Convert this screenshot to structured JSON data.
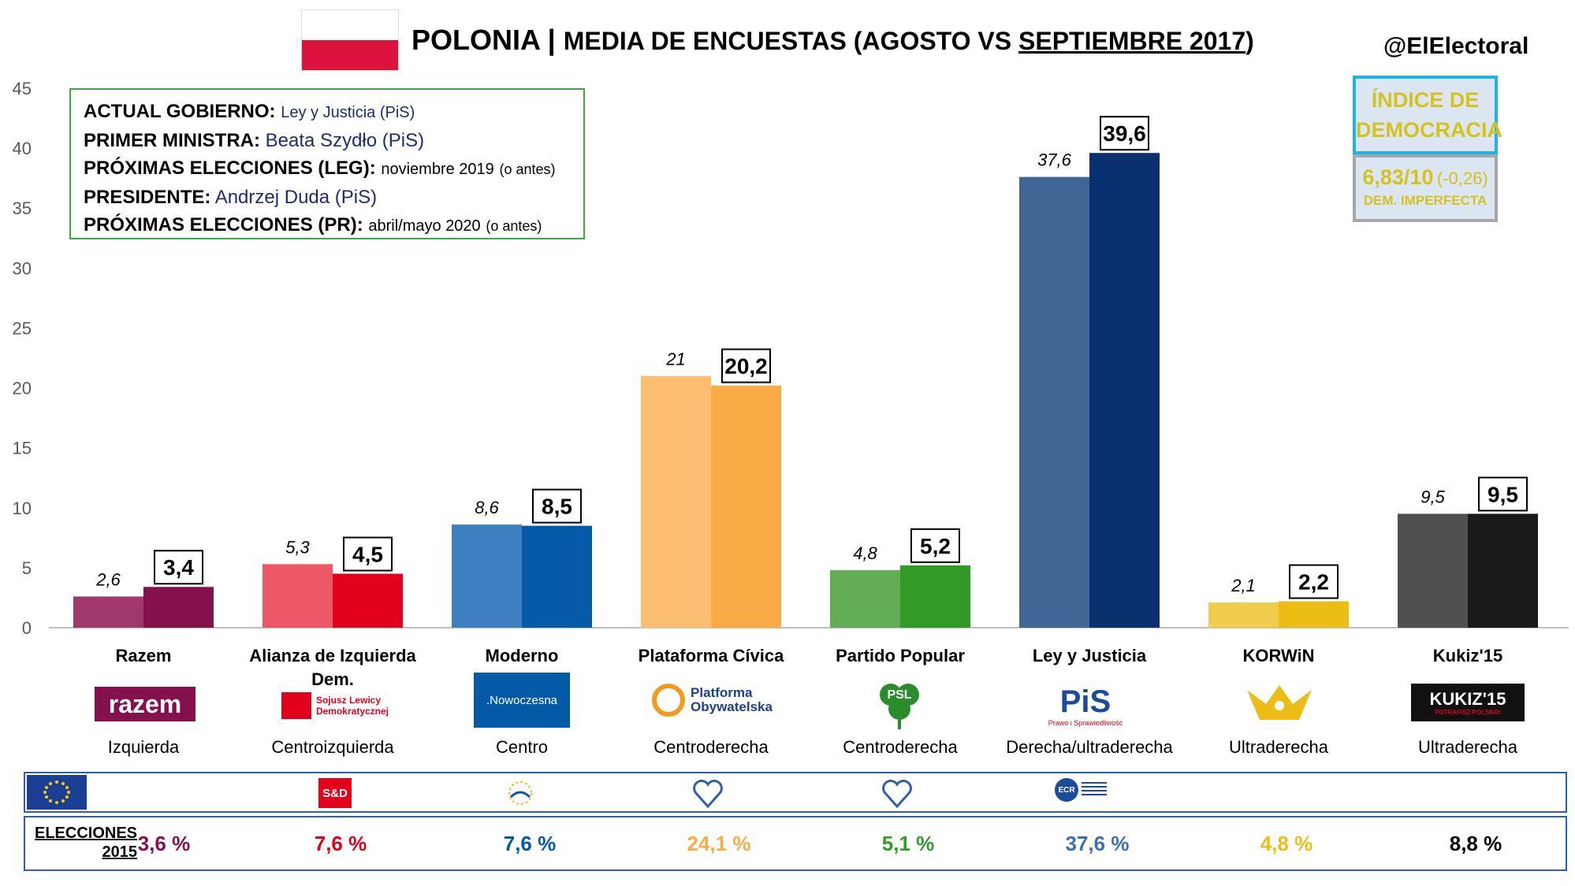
{
  "header": {
    "title_main": "POLONIA",
    "title_sep": " | ",
    "title_sub_pre": "MEDIA DE ENCUESTAS (AGOSTO VS ",
    "title_sub_ul": "SEPTIEMBRE 2017",
    "title_sub_post": ")",
    "handle": "@ElElectoral"
  },
  "info": {
    "gov_label": "ACTUAL GOBIERNO:",
    "gov_value": "Ley y Justicia (PiS)",
    "pm_label": "PRIMER MINISTRA:",
    "pm_value": "Beata Szydło (PiS)",
    "leg_label": "PRÓXIMAS ELECCIONES (LEG):",
    "leg_value_main": "noviembre 2019",
    "leg_value_note": "(o antes)",
    "pres_label": "PRESIDENTE:",
    "pres_value": "Andrzej Duda (PiS)",
    "pr_label": "PRÓXIMAS ELECCIONES (PR):",
    "pr_value_main": "abril/mayo 2020",
    "pr_value_note": "(o antes)"
  },
  "democracy": {
    "title_line1": "ÍNDICE DE",
    "title_line2": "DEMOCRACIA",
    "score": "6,83/10",
    "delta": "(-0,26)",
    "label": "DEM. IMPERFECTA",
    "color": "#d4c21f"
  },
  "chart_data": {
    "type": "bar",
    "title": "MEDIA DE ENCUESTAS (AGOSTO VS SEPTIEMBRE 2017)",
    "categories": [
      "Razem",
      "Alianza de Izquierda Dem.",
      "Moderno",
      "Plataforma Cívica",
      "Partido Popular",
      "Ley y Justicia",
      "KORWiN",
      "Kukiz'15"
    ],
    "series": [
      {
        "values": [
          2.6,
          5.3,
          8.6,
          21,
          4.8,
          37.6,
          2.1,
          9.5
        ],
        "labels": [
          "2,6",
          "5,3",
          "8,6",
          "21",
          "4,8",
          "37,6",
          "2,1",
          "9,5"
        ]
      },
      {
        "values": [
          3.4,
          4.5,
          8.5,
          20.2,
          5.2,
          39.6,
          2.2,
          9.5
        ],
        "labels": [
          "3,4",
          "4,5",
          "8,5",
          "20,2",
          "5,2",
          "39,6",
          "2,2",
          "9,5"
        ]
      }
    ],
    "colors_aug": [
      "#a0386e",
      "#ec5868",
      "#3d7fc0",
      "#fdbf6f",
      "#63ad56",
      "#3f6694",
      "#f0cb4c",
      "#505050"
    ],
    "colors_sep": [
      "#85104e",
      "#e3001b",
      "#035aa6",
      "#fbab45",
      "#329a26",
      "#09306f",
      "#ecbe15",
      "#1a1a1a"
    ],
    "ylim": [
      0,
      45
    ],
    "yticks": [
      0,
      5,
      10,
      15,
      20,
      25,
      30,
      35,
      40,
      45
    ],
    "grid": false
  },
  "parties": [
    {
      "name_l1": "Razem",
      "name_l2": "",
      "ideology": "Izquierda",
      "logo_text": "razem",
      "election_2015": "3,6 %",
      "color": "#85104e"
    },
    {
      "name_l1": "Alianza de Izquierda",
      "name_l2": "Dem.",
      "ideology": "Centroizquierda",
      "logo_text_l1": "Sojusz Lewicy",
      "logo_text_l2": "Demokratycznej",
      "election_2015": "7,6 %",
      "color": "#e3001b"
    },
    {
      "name_l1": "Moderno",
      "name_l2": "",
      "ideology": "Centro",
      "logo_text": ".Nowoczesna",
      "election_2015": "7,6 %",
      "color": "#035aa6"
    },
    {
      "name_l1": "Plataforma Cívica",
      "name_l2": "",
      "ideology": "Centroderecha",
      "logo_text_l1": "Platforma",
      "logo_text_l2": "Obywatelska",
      "election_2015": "24,1 %",
      "color": "#fbab45"
    },
    {
      "name_l1": "Partido Popular",
      "name_l2": "",
      "ideology": "Centroderecha",
      "logo_text": "PSL",
      "election_2015": "5,1 %",
      "color": "#329a26"
    },
    {
      "name_l1": "Ley y Justicia",
      "name_l2": "",
      "ideology": "Derecha/ultraderecha",
      "logo_text": "PiS",
      "logo_sub": "Prawo i Sprawiedliwość",
      "election_2015": "37,6 %",
      "color": "#3f6fb0"
    },
    {
      "name_l1": "KORWiN",
      "name_l2": "",
      "ideology": "Ultraderecha",
      "election_2015": "4,8 %",
      "color": "#ecbe15"
    },
    {
      "name_l1": "Kukiz'15",
      "name_l2": "",
      "ideology": "Ultraderecha",
      "logo_text": "KUKIZ'15",
      "logo_sub": "POTRAFISZ POLSKO!",
      "election_2015": "8,8 %",
      "color": "#000000"
    }
  ],
  "eu_groups": {
    "sd_label": "S&D",
    "ecr_label": "ECR"
  },
  "elections": {
    "label_l1": "ELECCIONES",
    "label_l2": "2015"
  }
}
